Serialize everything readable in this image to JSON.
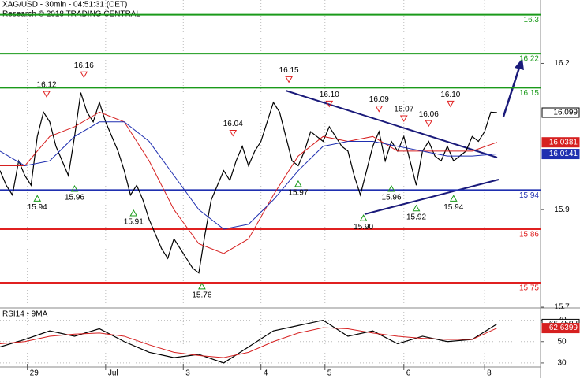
{
  "chart_data": [
    {
      "type": "line",
      "title": "XAG/USD - 30min - 04:51:31 (CET)",
      "subtitle": "Research © 2018 TRADING CENTRAL",
      "xlim": [
        0,
        87
      ],
      "xticks": [
        {
          "value": 4.4,
          "label": "29"
        },
        {
          "value": 17,
          "label": "Jul"
        },
        {
          "value": 29.5,
          "label": "3"
        },
        {
          "value": 42,
          "label": "4"
        },
        {
          "value": 52.3,
          "label": "5"
        },
        {
          "value": 65,
          "label": "6"
        },
        {
          "value": 78,
          "label": "8"
        }
      ],
      "ylim": [
        15.7,
        16.33
      ],
      "yticks": [
        15.7,
        15.9,
        16.2
      ],
      "series": [
        {
          "color": "#000000",
          "values": [
            15.98,
            15.95,
            15.93,
            16.0,
            15.97,
            15.95,
            16.05,
            16.1,
            16.08,
            16.03,
            16.0,
            15.97,
            16.05,
            16.14,
            16.1,
            16.08,
            16.12,
            16.08,
            16.05,
            16.02,
            15.98,
            15.93,
            15.95,
            15.92,
            15.88,
            15.85,
            15.82,
            15.8,
            15.84,
            15.82,
            15.8,
            15.78,
            15.77,
            15.85,
            15.92,
            15.95,
            15.98,
            15.96,
            16.0,
            16.03,
            15.99,
            16.02,
            16.04,
            16.08,
            16.12,
            16.1,
            16.05,
            16.0,
            15.99,
            16.02,
            16.06,
            16.05,
            16.04,
            16.07,
            16.05,
            16.03,
            16.02,
            15.97,
            15.93,
            15.98,
            16.03,
            16.06,
            16.0,
            16.04,
            16.02,
            16.05,
            16.0,
            15.95,
            16.02,
            16.04,
            16.01,
            16.0,
            16.03,
            16.0,
            16.01,
            16.02,
            16.05,
            16.04,
            16.06,
            16.1,
            16.099
          ]
        },
        {
          "color": "#d62020",
          "x": [
            0,
            4,
            8,
            12,
            16,
            20,
            24,
            28,
            32,
            36,
            40,
            44,
            48,
            52,
            56,
            60,
            64,
            68,
            72,
            76,
            80
          ],
          "values": [
            15.99,
            15.99,
            16.05,
            16.07,
            16.1,
            16.08,
            16.0,
            15.9,
            15.83,
            15.81,
            15.84,
            15.93,
            16.01,
            16.05,
            16.04,
            16.05,
            16.02,
            16.02,
            16.02,
            16.02,
            16.0381
          ]
        },
        {
          "color": "#1f2fb0",
          "x": [
            0,
            4,
            8,
            12,
            16,
            20,
            24,
            28,
            32,
            36,
            40,
            44,
            48,
            52,
            56,
            60,
            64,
            68,
            72,
            76,
            80
          ],
          "values": [
            16.02,
            15.99,
            16.0,
            16.05,
            16.08,
            16.08,
            16.04,
            15.97,
            15.9,
            15.86,
            15.87,
            15.92,
            15.98,
            16.03,
            16.04,
            16.04,
            16.03,
            16.02,
            16.01,
            16.01,
            16.0141
          ]
        }
      ],
      "levels": [
        {
          "value": 16.3,
          "color": "#1a9a1a"
        },
        {
          "value": 16.22,
          "color": "#1a9a1a"
        },
        {
          "value": 16.15,
          "color": "#1a9a1a"
        },
        {
          "value": 15.94,
          "color": "#1f2fb0"
        },
        {
          "value": 15.86,
          "color": "#e02020"
        },
        {
          "value": 15.75,
          "color": "#e02020"
        }
      ],
      "annotations": [
        {
          "kind": "peak",
          "x": 7.5,
          "value": 16.12,
          "label": "16.12"
        },
        {
          "kind": "peak",
          "x": 13.5,
          "value": 16.16,
          "label": "16.16"
        },
        {
          "kind": "peak",
          "x": 37.5,
          "value": 16.04,
          "label": "16.04"
        },
        {
          "kind": "peak",
          "x": 46.5,
          "value": 16.15,
          "label": "16.15"
        },
        {
          "kind": "peak",
          "x": 53,
          "value": 16.1,
          "label": "16.10"
        },
        {
          "kind": "peak",
          "x": 61,
          "value": 16.09,
          "label": "16.09"
        },
        {
          "kind": "peak",
          "x": 65,
          "value": 16.07,
          "label": "16.07"
        },
        {
          "kind": "peak",
          "x": 69,
          "value": 16.06,
          "label": "16.06"
        },
        {
          "kind": "peak",
          "x": 72.5,
          "value": 16.1,
          "label": "16.10"
        },
        {
          "kind": "trough",
          "x": 6,
          "value": 15.94,
          "label": "15.94"
        },
        {
          "kind": "trough",
          "x": 12,
          "value": 15.96,
          "label": "15.96"
        },
        {
          "kind": "trough",
          "x": 21.5,
          "value": 15.91,
          "label": "15.91"
        },
        {
          "kind": "trough",
          "x": 32.5,
          "value": 15.76,
          "label": "15.76"
        },
        {
          "kind": "trough",
          "x": 48,
          "value": 15.97,
          "label": "15.97"
        },
        {
          "kind": "trough",
          "x": 58.5,
          "value": 15.9,
          "label": "15.90"
        },
        {
          "kind": "trough",
          "x": 63,
          "value": 15.96,
          "label": "15.96"
        },
        {
          "kind": "trough",
          "x": 67,
          "value": 15.92,
          "label": "15.92"
        },
        {
          "kind": "trough",
          "x": 73,
          "value": 15.94,
          "label": "15.94"
        }
      ]
    },
    {
      "type": "line",
      "title": "RSI14 - 9MA",
      "xlim": [
        0,
        87
      ],
      "ylim": [
        27,
        80
      ],
      "yticks": [
        30,
        50,
        70
      ],
      "series": [
        {
          "color": "#000000",
          "x": [
            0,
            4,
            8,
            12,
            16,
            20,
            24,
            28,
            32,
            36,
            40,
            44,
            48,
            52,
            56,
            60,
            64,
            68,
            72,
            76,
            80
          ],
          "values": [
            45,
            52,
            60,
            55,
            62,
            50,
            40,
            35,
            38,
            30,
            45,
            60,
            65,
            70,
            55,
            60,
            48,
            55,
            50,
            52,
            66.4502
          ]
        },
        {
          "color": "#d62020",
          "x": [
            0,
            4,
            8,
            12,
            16,
            20,
            24,
            28,
            32,
            36,
            40,
            44,
            48,
            52,
            56,
            60,
            64,
            68,
            72,
            76,
            80
          ],
          "values": [
            48,
            50,
            55,
            57,
            58,
            55,
            47,
            40,
            37,
            35,
            40,
            50,
            58,
            63,
            62,
            58,
            55,
            53,
            52,
            52,
            62.6399
          ]
        }
      ]
    }
  ]
}
